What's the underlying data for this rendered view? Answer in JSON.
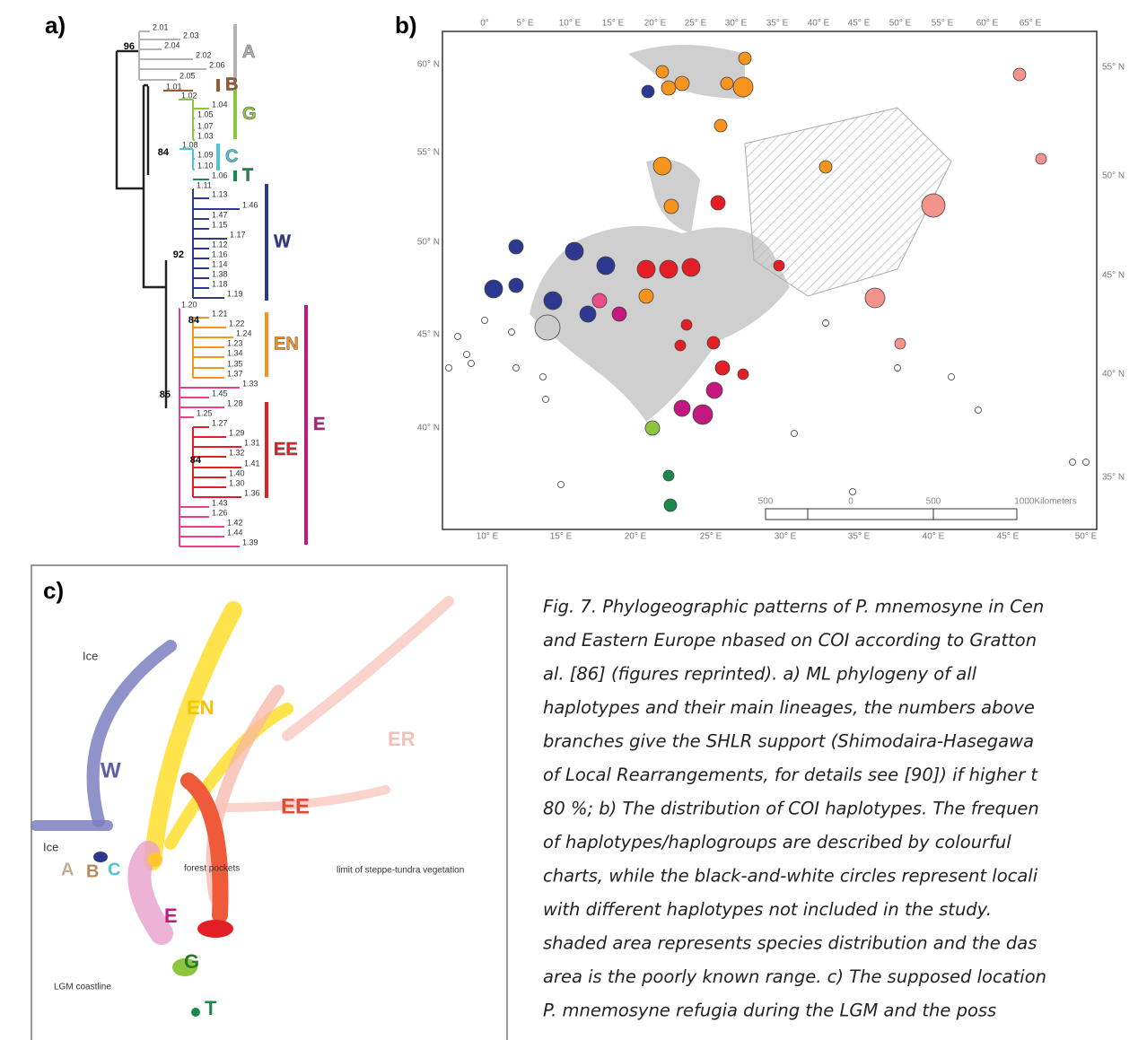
{
  "panel_a": {
    "label": "a)",
    "support": [
      "96",
      "84",
      "92",
      "84",
      "85",
      "84"
    ],
    "tips": [
      "2.01",
      "2.03",
      "2.04",
      "2.02",
      "2.06",
      "2.05",
      "1.01",
      "1.02",
      "1.04",
      "1.05",
      "1.07",
      "1.03",
      "1.08",
      "1.09",
      "1.10",
      "1.06",
      "1.11",
      "1.13",
      "1.46",
      "1.47",
      "1.15",
      "1.17",
      "1.12",
      "1.16",
      "1.14",
      "1.38",
      "1.18",
      "1.19",
      "1.20",
      "1.21",
      "1.22",
      "1.24",
      "1.23",
      "1.34",
      "1.35",
      "1.37",
      "1.33",
      "1.45",
      "1.28",
      "1.25",
      "1.27",
      "1.29",
      "1.31",
      "1.32",
      "1.41",
      "1.40",
      "1.30",
      "1.36",
      "1.43",
      "1.26",
      "1.42",
      "1.44",
      "1.39"
    ],
    "clades": [
      {
        "label": "A",
        "color": "#b3b3b3"
      },
      {
        "label": "B",
        "color": "#9c5a2e"
      },
      {
        "label": "G",
        "color": "#8cc63f"
      },
      {
        "label": "C",
        "color": "#4fc3d9"
      },
      {
        "label": "T",
        "color": "#1a8a4a"
      },
      {
        "label": "W",
        "color": "#2b3990"
      },
      {
        "label": "EN",
        "color": "#f7941d"
      },
      {
        "label": "E",
        "color": "#c2187f"
      },
      {
        "label": "EE",
        "color": "#e31e24"
      }
    ]
  },
  "panel_b": {
    "label": "b)",
    "top_labels": [
      "0°",
      "5° E",
      "10° E",
      "15° E",
      "20° E",
      "25° E",
      "30° E",
      "35° E",
      "40° E",
      "45° E",
      "50° E",
      "55° E",
      "60° E",
      "65° E"
    ],
    "left_labels": [
      "60° N",
      "55° N",
      "50° N",
      "45° N",
      "40° N"
    ],
    "right_labels": [
      "55° N",
      "50° N",
      "45° N",
      "40° N",
      "35° N"
    ],
    "bottom_labels": [
      "10° E",
      "15° E",
      "20° E",
      "25° E",
      "30° E",
      "35° E",
      "40° E",
      "45° E",
      "50° E"
    ],
    "scale_labels": [
      "500",
      "0",
      "500",
      "1000Kilometers"
    ]
  },
  "panel_c": {
    "label": "c)",
    "labels": [
      "Ice",
      "EN",
      "ER",
      "W",
      "EE",
      "Ice",
      "A",
      "B",
      "C",
      "forest pockets",
      "limit of steppe-tundra vegetation",
      "E",
      "G",
      "LGM coastline",
      "T"
    ]
  },
  "caption": {
    "lines": [
      "Fig. 7. Phylogeographic patterns of P. mnemosyne in Cen",
      "and Eastern Europe nbased on COI according to Gratton",
      "al. [86] (figures reprinted). a) ML phylogeny of all",
      "haplotypes and their main lineages, the numbers above",
      "branches give the SHLR support (Shimodaira-Hasegawa",
      "of Local Rearrangements, for details see [90]) if higher t",
      "80 %; b) The distribution of COI haplotypes. The frequen",
      "of haplotypes/haplogroups are described by colourful",
      "charts, while the black-and-white circles represent locali",
      "with different haplotypes not included in the study.",
      "shaded area represents species distribution and the das",
      "area is the poorly known range. c) The supposed location",
      "P. mnemosyne refugia during the LGM and the poss"
    ]
  }
}
